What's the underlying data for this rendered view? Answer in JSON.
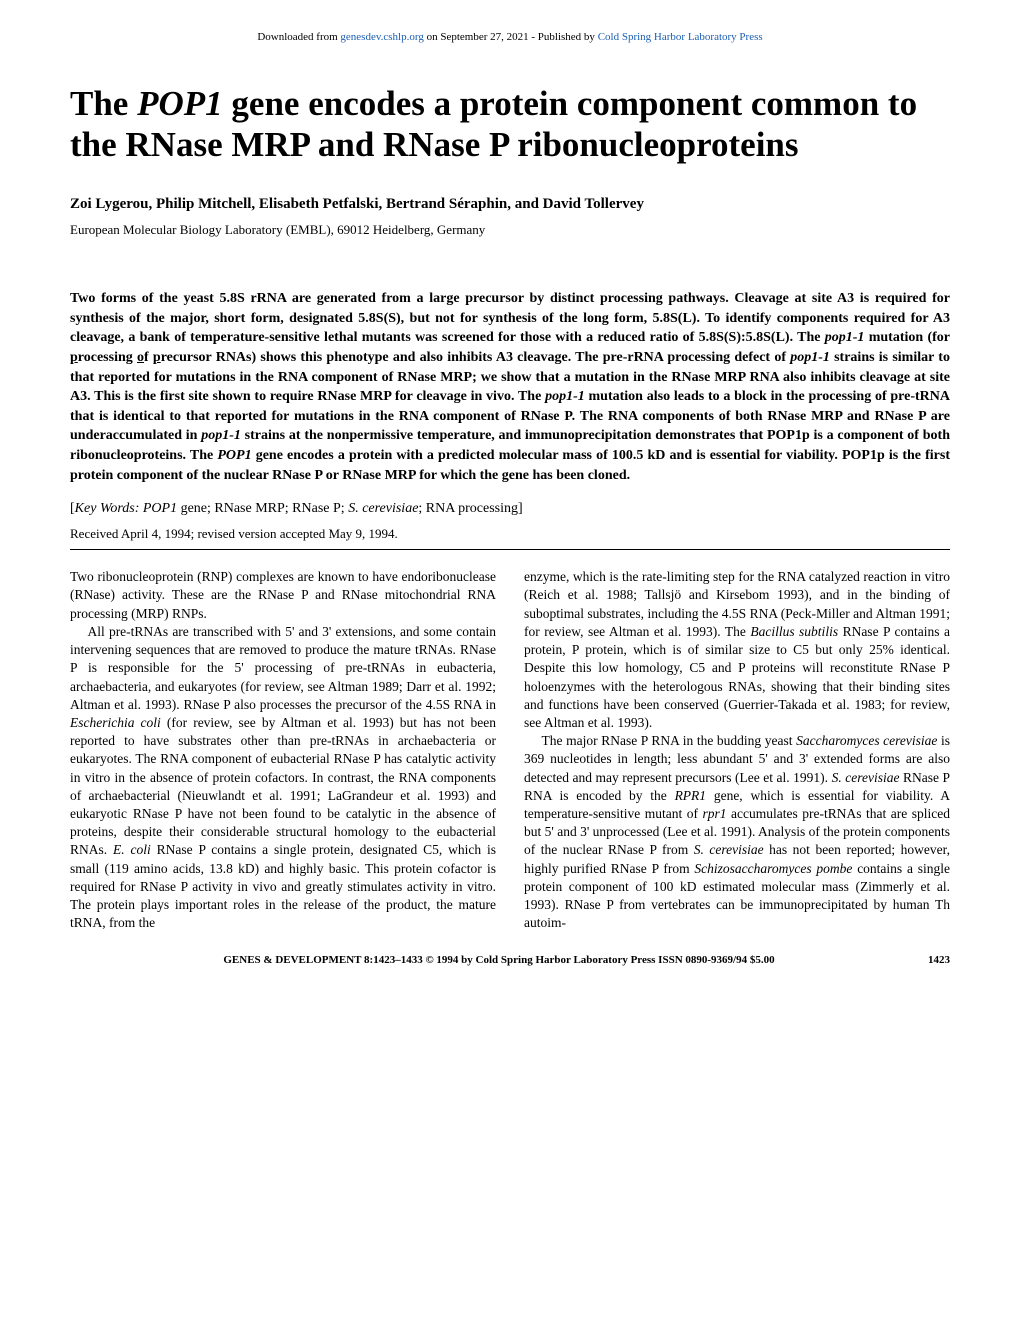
{
  "banner": {
    "prefix": "Downloaded from ",
    "link1_text": "genesdev.cshlp.org",
    "middle": " on September 27, 2021 - Published by ",
    "link2_text": "Cold Spring Harbor Laboratory Press"
  },
  "title_parts": {
    "pre": "The ",
    "gene": "POP1",
    "post": " gene encodes a protein component common to the RNase MRP and RNase P ribonucleoproteins"
  },
  "authors": "Zoi Lygerou, Philip Mitchell, Elisabeth Petfalski, Bertrand Séraphin, and David Tollervey",
  "affiliation": "European Molecular Biology Laboratory (EMBL), 69012 Heidelberg, Germany",
  "abstract_html": "Two forms of the yeast 5.8S rRNA are generated from a large precursor by distinct processing pathways. Cleavage at site A3 is required for synthesis of the major, short form, designated 5.8S(S), but not for synthesis of the long form, 5.8S(L). To identify components required for A3 cleavage, a bank of temperature-sensitive lethal mutants was screened for those with a reduced ratio of 5.8S(S):5.8S(L). The <span class=\"italic\">pop1-1</span> mutation (for <u>p</u>rocessing <u>o</u>f <u>p</u>recursor RNAs) shows this phenotype and also inhibits A3 cleavage. The pre-rRNA processing defect of <span class=\"italic\">pop1-1</span> strains is similar to that reported for mutations in the RNA component of RNase MRP; we show that a mutation in the RNase MRP RNA also inhibits cleavage at site A3. This is the first site shown to require RNase MRP for cleavage in vivo. The <span class=\"italic\">pop1-1</span> mutation also leads to a block in the processing of pre-tRNA that is identical to that reported for mutations in the RNA component of RNase P. The RNA components of both RNase MRP and RNase P are underaccumulated in <span class=\"italic\">pop1-1</span> strains at the nonpermissive temperature, and immunoprecipitation demonstrates that POP1p is a component of both ribonucleoproteins. The <span class=\"italic\">POP1</span> gene encodes a protein with a predicted molecular mass of 100.5 kD and is essential for viability. POP1p is the first protein component of the nuclear RNase P or RNase MRP for which the gene has been cloned.",
  "keywords_html": "[<span class=\"italic\">Key Words: POP1</span> gene; RNase MRP; RNase P; <span class=\"italic\">S. cerevisiae</span>; RNA processing]",
  "received": "Received April 4, 1994; revised version accepted May 9, 1994.",
  "col1_html": "Two ribonucleoprotein (RNP) complexes are known to have endoribonuclease (RNase) activity. These are the RNase P and RNase mitochondrial RNA processing (MRP) RNPs.</p><p>All pre-tRNAs are transcribed with 5' and 3' extensions, and some contain intervening sequences that are removed to produce the mature tRNAs. RNase P is responsible for the 5' processing of pre-tRNAs in eubacteria, archaebacteria, and eukaryotes (for review, see Altman 1989; Darr et al. 1992; Altman et al. 1993). RNase P also processes the precursor of the 4.5S RNA in <span class=\"italic\">Escherichia coli</span> (for review, see by Altman et al. 1993) but has not been reported to have substrates other than pre-tRNAs in archaebacteria or eukaryotes. The RNA component of eubacterial RNase P has catalytic activity in vitro in the absence of protein cofactors. In contrast, the RNA components of archaebacterial (Nieuwlandt et al. 1991; LaGrandeur et al. 1993) and eukaryotic RNase P have not been found to be catalytic in the absence of proteins, despite their considerable structural homology to the eubacterial RNAs. <span class=\"italic\">E. coli</span> RNase P contains a single protein, designated C5, which is small (119 amino acids, 13.8 kD) and highly basic. This protein cofactor is required for RNase P activity in vivo and greatly stimulates activity in vitro. The protein plays important roles in the release of the product, the mature tRNA, from the",
  "col2_html": "enzyme, which is the rate-limiting step for the RNA catalyzed reaction in vitro (Reich et al. 1988; Tallsjö and Kirsebom 1993), and in the binding of suboptimal substrates, including the 4.5S RNA (Peck-Miller and Altman 1991; for review, see Altman et al. 1993). The <span class=\"italic\">Bacillus subtilis</span> RNase P contains a protein, P protein, which is of similar size to C5 but only 25% identical. Despite this low homology, C5 and P proteins will reconstitute RNase P holoenzymes with the heterologous RNAs, showing that their binding sites and functions have been conserved (Guerrier-Takada et al. 1983; for review, see Altman et al. 1993).</p><p>The major RNase P RNA in the budding yeast <span class=\"italic\">Saccharomyces cerevisiae</span> is 369 nucleotides in length; less abundant 5' and 3' extended forms are also detected and may represent precursors (Lee et al. 1991). <span class=\"italic\">S. cerevisiae</span> RNase P RNA is encoded by the <span class=\"italic\">RPR1</span> gene, which is essential for viability. A temperature-sensitive mutant of <span class=\"italic\">rpr1</span> accumulates pre-tRNAs that are spliced but 5' and 3' unprocessed (Lee et al. 1991). Analysis of the protein components of the nuclear RNase P from <span class=\"italic\">S. cerevisiae</span> has not been reported; however, highly purified RNase P from <span class=\"italic\">Schizosaccharomyces pombe</span> contains a single protein component of 100 kD estimated molecular mass (Zimmerly et al. 1993). RNase P from vertebrates can be immunoprecipitated by human Th autoim-",
  "footer": {
    "text": "GENES & DEVELOPMENT 8:1423–1433 © 1994 by Cold Spring Harbor Laboratory Press ISSN 0890-9369/94 $5.00",
    "page": "1423"
  }
}
